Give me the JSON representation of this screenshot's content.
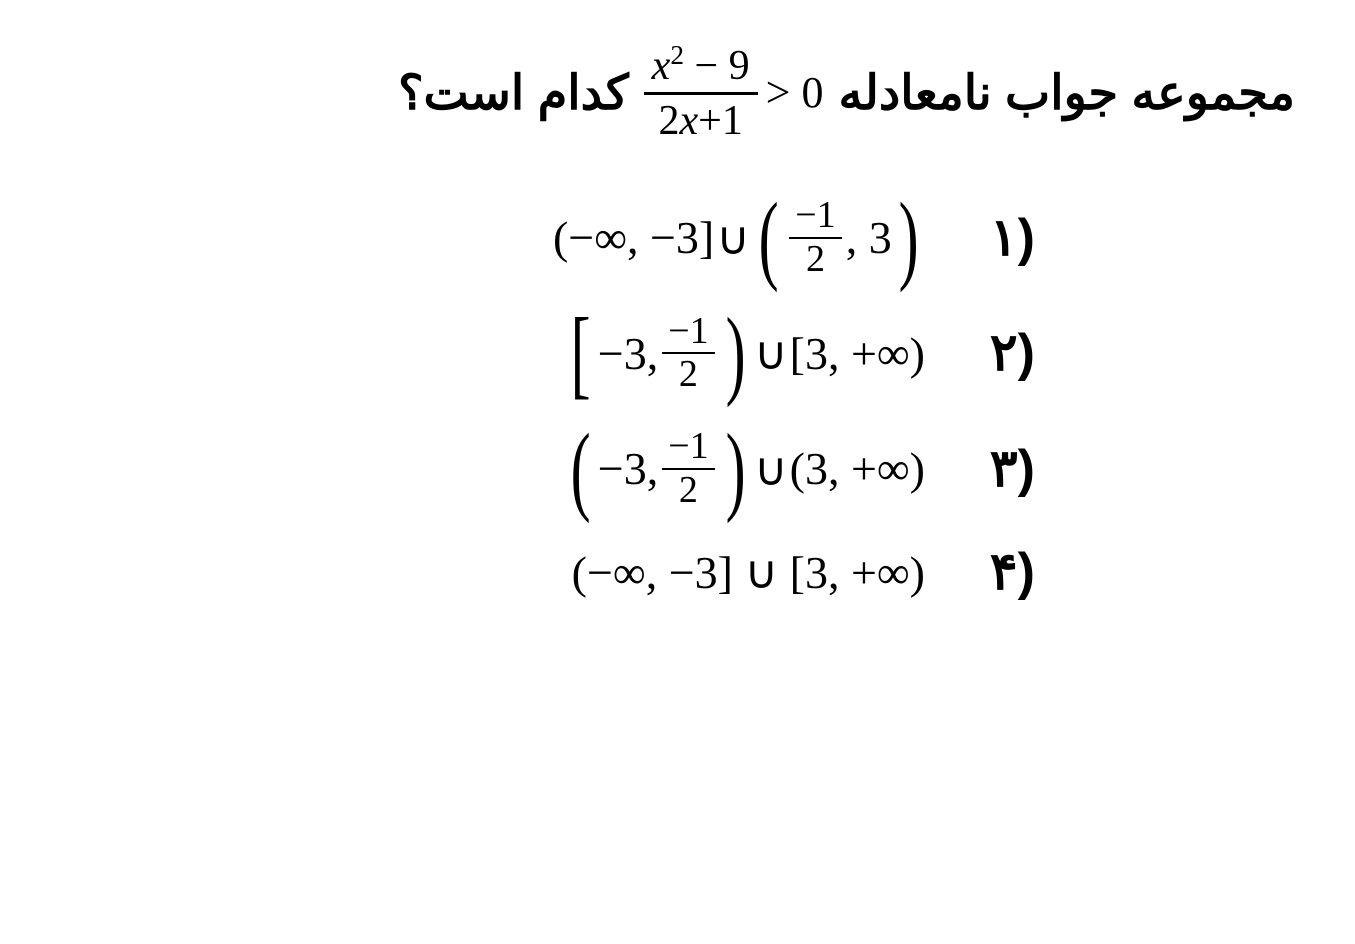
{
  "question": {
    "text_before": "مجموعه جواب نامعادله",
    "text_after": "کدام است؟",
    "inequality": {
      "numerator": "x² − 9",
      "denominator": "2x+1",
      "relation": "> 0"
    }
  },
  "options": [
    {
      "label": "(۱",
      "parts": {
        "left_open": "(",
        "left_content": "−∞, −3",
        "left_close": "]",
        "union": "∪",
        "right_open_big": "(",
        "frac_num": "−1",
        "frac_den": "2",
        "comma_right": ", 3",
        "right_close_big": ")"
      }
    },
    {
      "label": "(۲",
      "parts": {
        "left_open_big": "[",
        "left_content_pre": "−3,",
        "frac_num": "−1",
        "frac_den": "2",
        "left_close_big": ")",
        "union": "∪",
        "right_content": "[3, +∞)"
      }
    },
    {
      "label": "(۳",
      "parts": {
        "left_open_big": "(",
        "left_content_pre": "−3,",
        "frac_num": "−1",
        "frac_den": "2",
        "left_close_big": ")",
        "union": "∪",
        "right_content": "(3, +∞)"
      }
    },
    {
      "label": "(۴",
      "parts": {
        "full": "(−∞, −3] ∪ [3, +∞)"
      }
    }
  ],
  "styling": {
    "background_color": "#ffffff",
    "text_color": "#000000",
    "question_fontsize": 48,
    "option_fontsize": 52,
    "font_family_text": "Tahoma",
    "font_family_math": "Times New Roman"
  }
}
